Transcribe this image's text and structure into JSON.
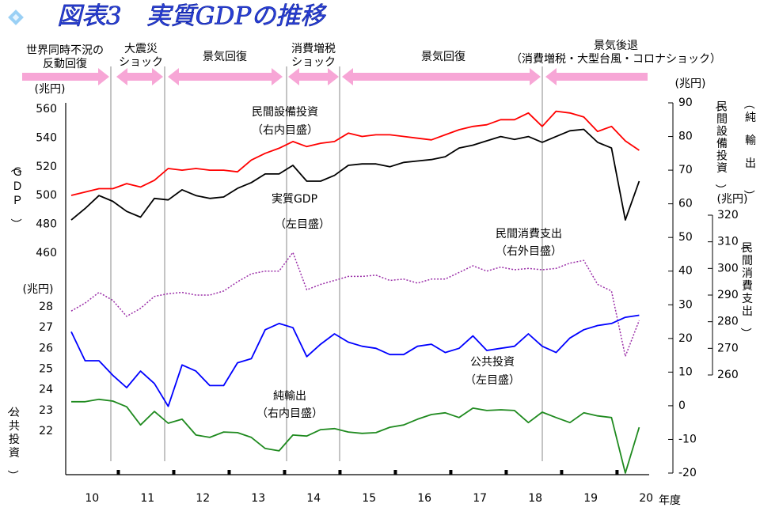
{
  "chart_data": {
    "type": "line",
    "title": "図表3　実質GDPの推移",
    "x_label": "年度",
    "x": [
      10,
      10.25,
      10.5,
      10.75,
      11,
      11.25,
      11.5,
      11.75,
      12,
      12.25,
      12.5,
      12.75,
      13,
      13.25,
      13.5,
      13.75,
      14,
      14.25,
      14.5,
      14.75,
      15,
      15.25,
      15.5,
      15.75,
      16,
      16.25,
      16.5,
      16.75,
      17,
      17.25,
      17.5,
      17.75,
      18,
      18.25,
      18.5,
      18.75,
      19,
      19.25,
      19.5,
      19.75,
      20,
      20.25
    ],
    "xlim": [
      9.9,
      20.43
    ],
    "xticks": [
      10,
      11,
      12,
      13,
      14,
      15,
      16,
      17,
      18,
      19,
      20
    ],
    "axes": {
      "y": {
        "unit": "(兆円)",
        "labels": [
          "（ＧＤＰ）"
        ],
        "ylim": [
          460,
          560
        ],
        "yticks": [
          460,
          480,
          500,
          520,
          540,
          560
        ]
      },
      "y4": {
        "unit": "(兆円)",
        "labels": [
          "（公共投資）"
        ],
        "ylim": [
          22,
          28
        ],
        "yticks": [
          22,
          23,
          24,
          25,
          26,
          27,
          28
        ]
      },
      "y2": {
        "unit": "(兆円)",
        "labels": [
          "（民間設備投資）",
          "（純輸出）"
        ],
        "ylim": [
          -20,
          90
        ],
        "yticks": [
          -20,
          -10,
          0,
          10,
          20,
          30,
          40,
          50,
          60,
          70,
          80,
          90
        ]
      },
      "y3": {
        "unit": "(兆円)",
        "labels": [
          "（民間消費支出）"
        ],
        "ylim": [
          260,
          320
        ],
        "yticks": [
          260,
          270,
          280,
          290,
          300,
          310,
          320
        ]
      }
    },
    "series": [
      {
        "name": "実質GDP",
        "note": "（左目盛）",
        "axis": "y",
        "color": "#000000",
        "dash": false,
        "values": [
          483,
          491,
          500,
          496,
          489,
          485,
          498,
          497,
          504,
          500,
          498,
          499,
          505,
          509,
          515,
          515,
          521,
          510,
          510,
          514,
          521,
          522,
          522,
          520,
          523,
          524,
          525,
          527,
          533,
          535,
          538,
          541,
          539,
          541,
          537,
          541,
          545,
          546,
          537,
          533,
          483,
          510
        ]
      },
      {
        "name": "民間設備投資",
        "note": "（右内目盛）",
        "axis": "y2",
        "color": "#ff0000",
        "dash": false,
        "values": [
          62.5,
          63.5,
          64.5,
          64.5,
          66,
          65,
          67,
          70.5,
          70,
          70.5,
          70,
          70,
          69.5,
          73,
          75,
          76.5,
          78.5,
          77,
          78,
          78.5,
          81,
          80,
          80.5,
          80.5,
          80,
          79.5,
          79,
          80.5,
          82,
          83,
          83.5,
          85,
          85,
          87,
          83,
          87.5,
          87,
          85.8,
          81.5,
          83,
          78.7,
          75.9
        ]
      },
      {
        "name": "民間消費支出",
        "note": "（右外目盛）",
        "axis": "y3",
        "color": "#9b2fa8",
        "dash": true,
        "values": [
          284,
          287,
          291,
          288,
          282,
          285,
          289.5,
          290.5,
          291,
          290,
          290,
          291.5,
          295,
          298,
          299,
          299,
          306,
          292,
          294,
          295.5,
          297,
          297,
          297.5,
          295.5,
          296,
          294.5,
          296,
          296,
          298.5,
          301,
          299,
          300.5,
          299.5,
          300,
          299.5,
          300,
          302,
          303,
          294,
          291.5,
          267,
          280.5
        ]
      },
      {
        "name": "公共投資",
        "note": "（左目盛）",
        "axis": "y4",
        "color": "#0000ff",
        "dash": false,
        "values": [
          26.8,
          25.4,
          25.4,
          24.7,
          24.1,
          24.9,
          24.3,
          23.2,
          25.2,
          24.9,
          24.2,
          24.2,
          25.3,
          25.5,
          26.9,
          27.2,
          27.0,
          25.6,
          26.2,
          26.7,
          26.3,
          26.1,
          26.0,
          25.7,
          25.7,
          26.1,
          26.2,
          25.8,
          26.0,
          26.6,
          25.9,
          26.0,
          26.1,
          26.7,
          26.1,
          25.8,
          26.5,
          26.9,
          27.1,
          27.2,
          27.5,
          27.6
        ]
      },
      {
        "name": "純輸出",
        "note": "（右内目盛）",
        "axis": "y2",
        "color": "#1f8a1f",
        "dash": false,
        "values": [
          1.2,
          1.2,
          1.9,
          1.4,
          -0.3,
          -5.7,
          -1.7,
          -5.2,
          -4,
          -8.7,
          -9.4,
          -7.8,
          -8,
          -9.4,
          -12.7,
          -13.4,
          -8.7,
          -9,
          -7.1,
          -6.8,
          -7.8,
          -8.2,
          -8,
          -6.4,
          -5.7,
          -4,
          -2.6,
          -2.1,
          -3.5,
          -0.7,
          -1.4,
          -1.2,
          -1.4,
          -5,
          -1.9,
          -3.5,
          -5,
          -2.1,
          -3,
          -3.5,
          -20,
          -6.4
        ]
      }
    ]
  },
  "phases": [
    {
      "lines": [
        "世界同時不況の",
        "反動回復"
      ]
    },
    {
      "lines": [
        "大震災",
        "ショック"
      ]
    },
    {
      "lines": [
        "景気回復"
      ]
    },
    {
      "lines": [
        "消費増税",
        "ショック"
      ]
    },
    {
      "lines": [
        "景気回復"
      ]
    },
    {
      "lines": [
        "景気後退",
        "（消費増税・大型台風・コロナショック）"
      ]
    }
  ]
}
